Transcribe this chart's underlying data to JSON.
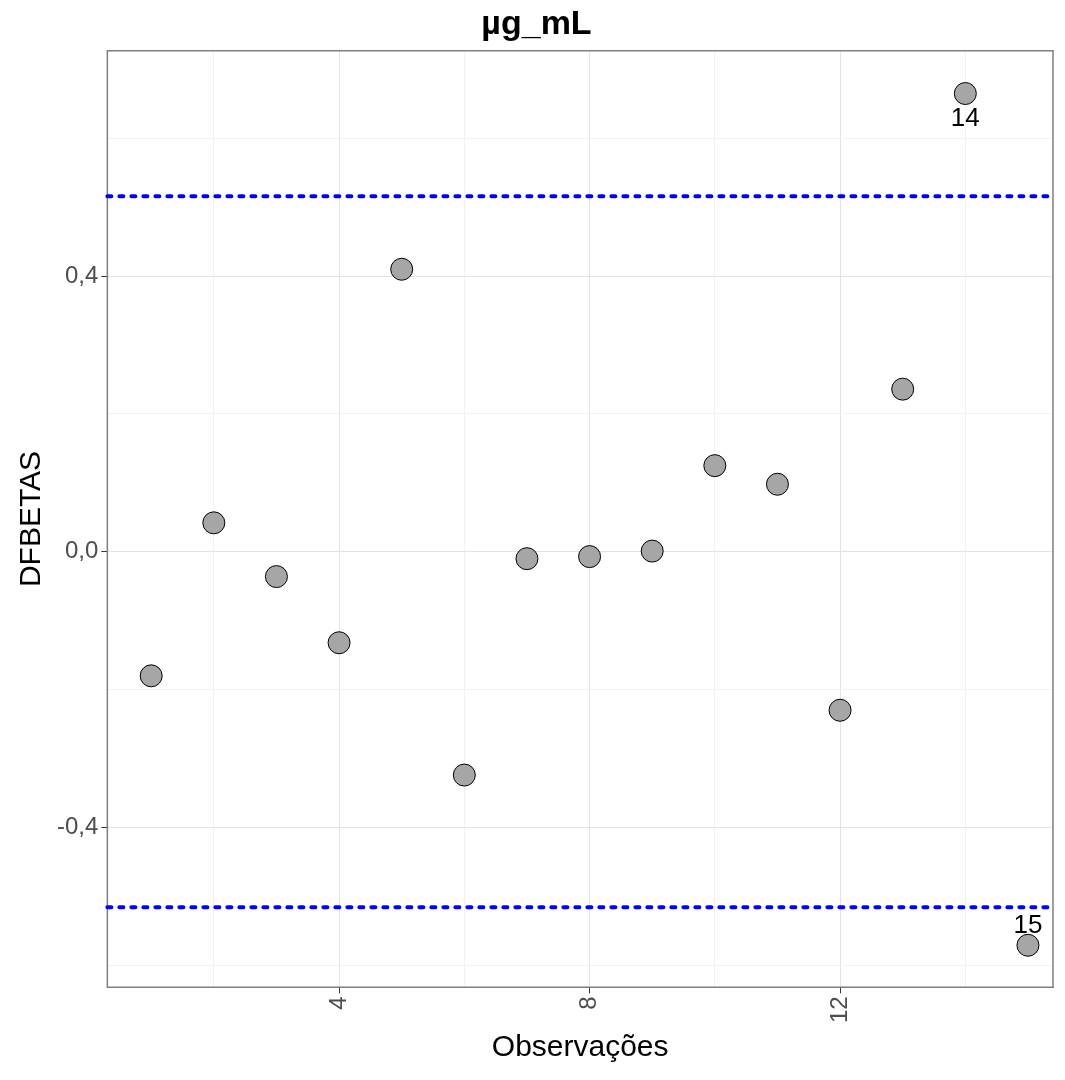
{
  "chart_data": {
    "type": "scatter",
    "title": "µg_mL",
    "xlabel": "Observações",
    "ylabel": "DFBETAS",
    "x": [
      1,
      2,
      3,
      4,
      5,
      6,
      7,
      8,
      9,
      10,
      11,
      12,
      13,
      14,
      15
    ],
    "series": [
      {
        "color": "#a6a6a6",
        "values": [
          -0.18,
          0.042,
          -0.036,
          -0.132,
          0.41,
          -0.324,
          -0.01,
          -0.007,
          0.001,
          0.125,
          0.098,
          -0.23,
          0.236,
          0.665,
          -0.571
        ]
      }
    ],
    "xlim": [
      0.3,
      15.4
    ],
    "ylim": [
      -0.632,
      0.727
    ],
    "xticks": [
      {
        "value": 2,
        "label": null
      },
      4,
      {
        "value": 6,
        "label": null
      },
      8,
      {
        "value": 10,
        "label": null
      },
      12,
      {
        "value": 14,
        "label": null
      }
    ],
    "yticks": [
      {
        "value": -0.6,
        "label": null
      },
      {
        "value": -0.4,
        "label": "-0,4"
      },
      {
        "value": -0.2,
        "label": null
      },
      {
        "value": 0,
        "label": "0,0"
      },
      {
        "value": 0.2,
        "label": null
      },
      {
        "value": 0.4,
        "label": "0,4"
      },
      {
        "value": 0.6,
        "label": null
      }
    ],
    "ref_lines": [
      {
        "axis": "y",
        "value": 0.516,
        "color": "#0000ff",
        "line_style": "dotted"
      },
      {
        "axis": "y",
        "value": -0.516,
        "color": "#0000ff",
        "line_style": "dotted"
      }
    ],
    "annotations": [
      {
        "text": "14",
        "x": 14,
        "y": 0.665
      },
      {
        "text": "15",
        "x": 15,
        "y": -0.571
      }
    ],
    "grid": true,
    "legend": false,
    "marker": "circle"
  }
}
